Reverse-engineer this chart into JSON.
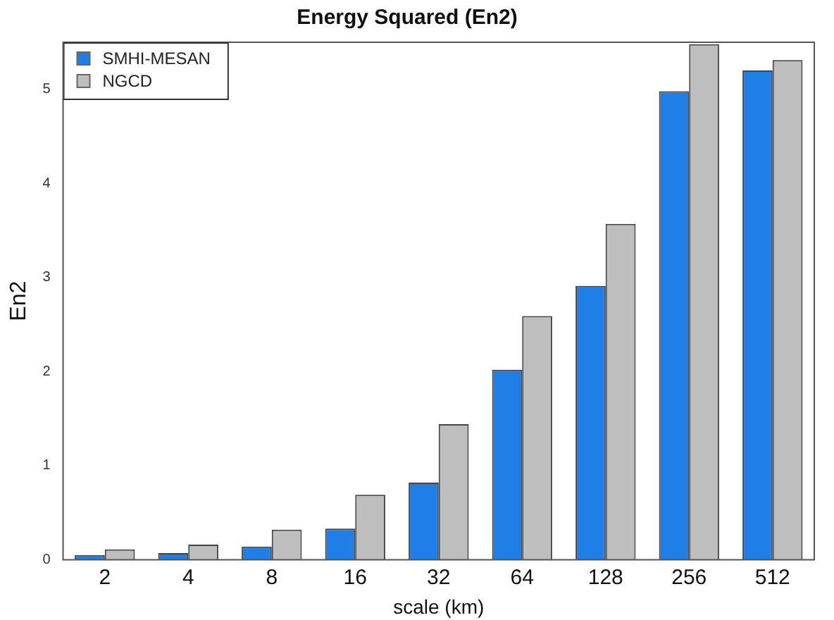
{
  "chart_data": {
    "type": "bar",
    "title": "Energy Squared (En2)",
    "xlabel": "scale (km)",
    "ylabel": "En2",
    "categories": [
      "2",
      "4",
      "8",
      "16",
      "32",
      "64",
      "128",
      "256",
      "512"
    ],
    "series": [
      {
        "name": "SMHI-MESAN",
        "color": "#1f7fe6",
        "values": [
          0.05,
          0.07,
          0.14,
          0.33,
          0.82,
          2.02,
          2.91,
          4.98,
          5.2
        ]
      },
      {
        "name": "NGCD",
        "color": "#bebebe",
        "values": [
          0.11,
          0.16,
          0.32,
          0.69,
          1.44,
          2.59,
          3.57,
          5.48,
          5.31
        ]
      }
    ],
    "ylim": [
      0,
      5.5
    ],
    "yticks": [
      0,
      1,
      2,
      3,
      4,
      5
    ],
    "grid": false,
    "legend": "top left"
  }
}
